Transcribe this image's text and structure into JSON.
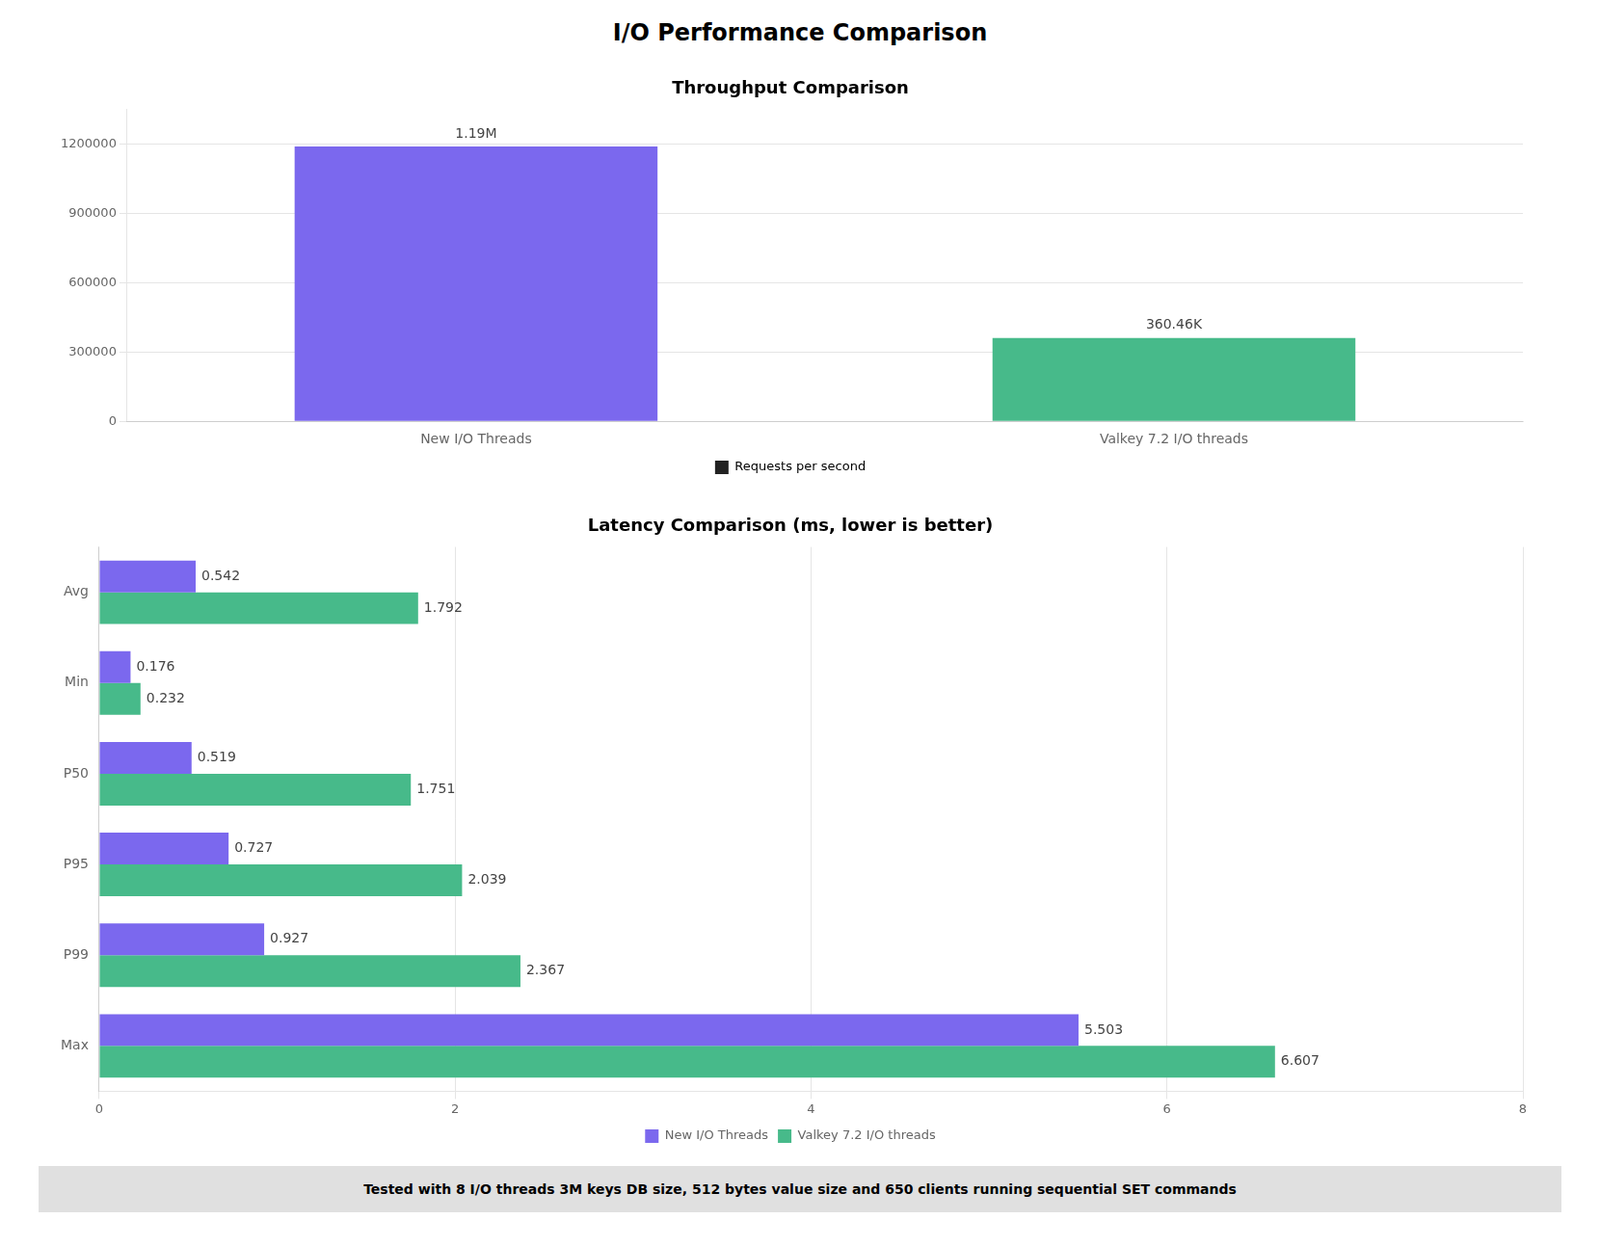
{
  "title": "I/O Performance Comparison",
  "annotations": [
    "Tested with 8 I/O threads 3M keys DB size, 512 bytes value size and 650 clients running sequential SET commands"
  ],
  "chart_data": [
    {
      "type": "bar",
      "title": "Throughput Comparison",
      "categories": [
        "New I/O Threads",
        "Valkey 7.2 I/O threads"
      ],
      "series": [
        {
          "name": "Requests per second",
          "color": "#222222",
          "colors": [
            "#7B68EE",
            "#47BA8A"
          ],
          "values": [
            1190000,
            360460
          ],
          "value_labels": [
            "1.19M",
            "360.46K"
          ]
        }
      ],
      "ylim": [
        0,
        1350000
      ],
      "yticks": [
        0,
        300000,
        600000,
        900000,
        1200000
      ],
      "grid": "y",
      "legend": "bottom",
      "data_labels": true
    },
    {
      "type": "bar",
      "orientation": "horizontal",
      "title": "Latency Comparison (ms, lower is better)",
      "categories": [
        "Avg",
        "Min",
        "P50",
        "P95",
        "P99",
        "Max"
      ],
      "series": [
        {
          "name": "New I/O Threads",
          "color": "#7B68EE",
          "values": [
            0.542,
            0.176,
            0.519,
            0.727,
            0.927,
            5.503
          ]
        },
        {
          "name": "Valkey 7.2 I/O threads",
          "color": "#47BA8A",
          "values": [
            1.792,
            0.232,
            1.751,
            2.039,
            2.367,
            6.607
          ]
        }
      ],
      "xlim": [
        0,
        8
      ],
      "xticks": [
        0,
        2,
        4,
        6,
        8
      ],
      "grid": "x",
      "legend": "bottom",
      "data_labels": true
    }
  ]
}
